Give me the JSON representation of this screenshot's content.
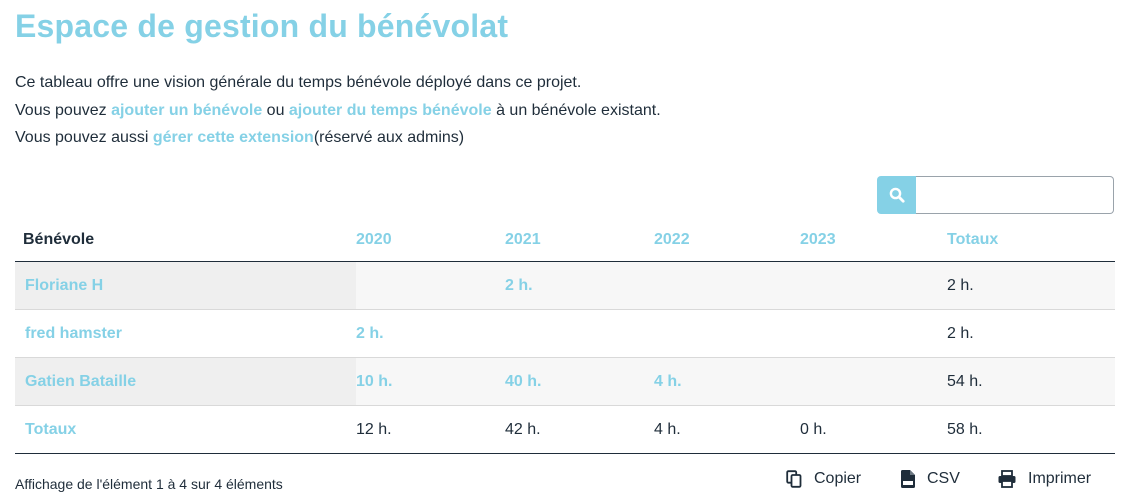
{
  "page": {
    "title": "Espace de gestion du bénévolat",
    "intro_line1": "Ce tableau offre une vision générale du temps bénévole déployé dans ce projet.",
    "intro_line2_prefix": "Vous pouvez ",
    "intro_link_add_volunteer": "ajouter un bénévole",
    "intro_line2_mid": " ou ",
    "intro_link_add_time": "ajouter du temps bénévole",
    "intro_line2_suffix": " à un bénévole existant.",
    "intro_line3_prefix": "Vous pouvez aussi ",
    "intro_link_manage": "gérer cette extension",
    "intro_line3_suffix": "(réservé aux admins)"
  },
  "search": {
    "placeholder": "",
    "value": ""
  },
  "table": {
    "headers": [
      "Bénévole",
      "2020",
      "2021",
      "2022",
      "2023",
      "Totaux"
    ],
    "rows": [
      {
        "name": "Floriane H",
        "y2020": "",
        "y2021": "2 h.",
        "y2022": "",
        "y2023": "",
        "total": "2 h."
      },
      {
        "name": "fred hamster",
        "y2020": "2 h.",
        "y2021": "",
        "y2022": "",
        "y2023": "",
        "total": "2 h."
      },
      {
        "name": "Gatien Bataille",
        "y2020": "10 h.",
        "y2021": "40 h.",
        "y2022": "4 h.",
        "y2023": "",
        "total": "54 h."
      },
      {
        "name": "Totaux",
        "y2020": "12 h.",
        "y2021": "42 h.",
        "y2022": "4 h.",
        "y2023": "0 h.",
        "total": "58 h."
      }
    ]
  },
  "footer": {
    "info": "Affichage de l'élément 1 à 4 sur 4 éléments",
    "copy_label": "Copier",
    "csv_label": "CSV",
    "print_label": "Imprimer"
  },
  "colors": {
    "accent": "#85d1e6",
    "text": "#1f2d3a"
  }
}
